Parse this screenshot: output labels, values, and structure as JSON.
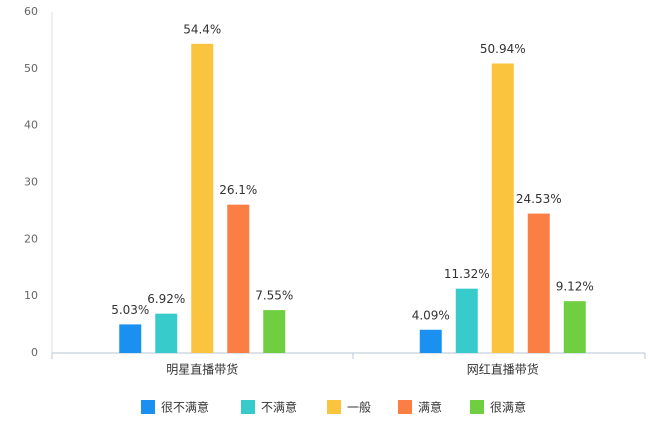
{
  "chart_data": {
    "type": "bar",
    "categories": [
      "明星直播带货",
      "网红直播带货"
    ],
    "series": [
      {
        "name": "很不满意",
        "color": "#1a90f0",
        "values": [
          5.03,
          4.09
        ],
        "value_labels": [
          "5.03%",
          "4.09%"
        ]
      },
      {
        "name": "不满意",
        "color": "#37cbcb",
        "values": [
          6.92,
          11.32
        ],
        "value_labels": [
          "6.92%",
          "11.32%"
        ]
      },
      {
        "name": "一般",
        "color": "#fbc43f",
        "values": [
          54.4,
          50.94
        ],
        "value_labels": [
          "54.4%",
          "50.94%"
        ]
      },
      {
        "name": "满意",
        "color": "#fb7e45",
        "values": [
          26.1,
          24.53
        ],
        "value_labels": [
          "26.1%",
          "24.53%"
        ]
      },
      {
        "name": "很满意",
        "color": "#70cf40",
        "values": [
          7.55,
          9.12
        ],
        "value_labels": [
          "7.55%",
          "9.12%"
        ]
      }
    ],
    "ylim": [
      0,
      60
    ],
    "yticks": [
      0,
      10,
      20,
      30,
      40,
      50,
      60
    ],
    "grid": false,
    "legend": "bottom"
  }
}
